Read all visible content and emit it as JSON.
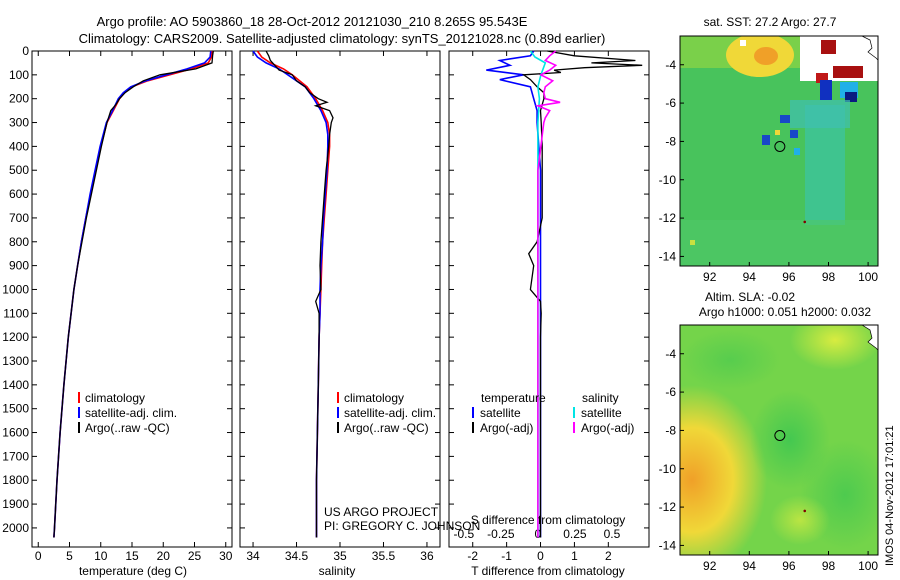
{
  "header": {
    "line1": "Argo profile: AO 5903860_18 28-Oct-2012 20121030_210 8.265S 95.543E",
    "line2": "Climatology: CARS2009. Satellite-adjusted climatology: synTS_20121028.nc (0.89d earlier)"
  },
  "side_label": "IMOS 04-Nov-2012 17:01:21",
  "credits": {
    "line1": "US ARGO PROJECT",
    "line2": "PI: GREGORY C. JOHNSON"
  },
  "colors": {
    "clim": "#ff0000",
    "sat": "#0000ff",
    "argo": "#000000",
    "sal_sat": "#00e5e5",
    "sal_argo": "#ff00ff"
  },
  "chart_data": [
    {
      "id": "temperature",
      "type": "line",
      "xlabel": "temperature (deg C)",
      "ylabel": "",
      "xlim": [
        -1,
        31
      ],
      "ylim": [
        2080,
        0
      ],
      "xticks": [
        0,
        5,
        10,
        15,
        20,
        25,
        30
      ],
      "xtick_labels": [
        "0",
        "5",
        "10",
        "15",
        "20",
        "25",
        "30"
      ],
      "yticks": [
        0,
        100,
        200,
        300,
        400,
        500,
        600,
        700,
        800,
        900,
        1000,
        1100,
        1200,
        1300,
        1400,
        1500,
        1600,
        1700,
        1800,
        1900,
        2000
      ],
      "ytick_labels": [
        "0",
        "100",
        "200",
        "300",
        "400",
        "500",
        "600",
        "700",
        "800",
        "900",
        "1000",
        "1100",
        "1200",
        "1300",
        "1400",
        "1500",
        "1600",
        "1700",
        "1800",
        "1900",
        "2000"
      ],
      "legend": [
        "climatology",
        "satellite-adj. clim.",
        "Argo(..raw -QC)"
      ],
      "legend_position": "lower-center",
      "series": [
        {
          "name": "climatology",
          "color": "#ff0000",
          "depth": [
            0,
            25,
            50,
            75,
            100,
            125,
            150,
            175,
            200,
            250,
            300,
            400,
            500,
            600,
            700,
            800,
            900,
            1000,
            1200,
            1400,
            1600,
            1800,
            2000,
            2040
          ],
          "values": [
            27.8,
            27.7,
            27.2,
            24.5,
            21.0,
            17.5,
            15.0,
            13.8,
            13.0,
            12.0,
            11.0,
            10.0,
            9.2,
            8.4,
            7.6,
            6.9,
            6.3,
            5.7,
            4.8,
            4.1,
            3.5,
            3.0,
            2.6,
            2.5
          ]
        },
        {
          "name": "satellite-adj. clim.",
          "color": "#0000ff",
          "depth": [
            0,
            25,
            50,
            75,
            100,
            125,
            150,
            175,
            200,
            250,
            300,
            400,
            500,
            600,
            700,
            800,
            900,
            1000,
            1200,
            1400,
            1600,
            1800,
            2000,
            2040
          ],
          "values": [
            27.6,
            27.5,
            26.6,
            23.8,
            20.5,
            17.2,
            14.8,
            13.6,
            12.8,
            11.9,
            10.9,
            9.9,
            9.1,
            8.3,
            7.6,
            6.9,
            6.3,
            5.7,
            4.8,
            4.1,
            3.5,
            3.0,
            2.6,
            2.5
          ]
        },
        {
          "name": "Argo(..raw -QC)",
          "color": "#000000",
          "depth": [
            0,
            20,
            50,
            75,
            100,
            125,
            150,
            175,
            200,
            225,
            250,
            300,
            400,
            500,
            600,
            700,
            800,
            900,
            1000,
            1200,
            1400,
            1600,
            1800,
            2000,
            2040
          ],
          "values": [
            28.0,
            27.9,
            27.8,
            25.2,
            19.5,
            16.8,
            15.2,
            13.9,
            13.0,
            12.4,
            11.6,
            11.0,
            10.1,
            9.3,
            8.5,
            7.7,
            7.0,
            6.3,
            5.7,
            4.8,
            4.1,
            3.5,
            3.0,
            2.6,
            2.5
          ]
        }
      ]
    },
    {
      "id": "salinity",
      "type": "line",
      "xlabel": "salinity",
      "xlim": [
        33.85,
        36.15
      ],
      "ylim": [
        2080,
        0
      ],
      "xticks": [
        34,
        34.5,
        35,
        35.5,
        36
      ],
      "xtick_labels": [
        "34",
        "34.5",
        "35",
        "35.5",
        "36"
      ],
      "legend": [
        "climatology",
        "satellite-adj. clim.",
        "Argo(..raw -QC)"
      ],
      "legend_position": "lower-center",
      "series": [
        {
          "name": "climatology",
          "color": "#ff0000",
          "depth": [
            0,
            25,
            50,
            75,
            100,
            150,
            200,
            250,
            300,
            350,
            400,
            500,
            600,
            700,
            800,
            900,
            1000,
            1100,
            1200,
            1400,
            1600,
            1800,
            2000,
            2040
          ],
          "values": [
            34.05,
            34.1,
            34.2,
            34.35,
            34.45,
            34.62,
            34.72,
            34.8,
            34.86,
            34.88,
            34.88,
            34.86,
            34.84,
            34.82,
            34.8,
            34.79,
            34.78,
            34.77,
            34.76,
            34.75,
            34.74,
            34.73,
            34.73,
            34.73
          ]
        },
        {
          "name": "satellite-adj. clim.",
          "color": "#0000ff",
          "depth": [
            0,
            25,
            50,
            75,
            100,
            150,
            200,
            250,
            300,
            350,
            400,
            500,
            600,
            700,
            800,
            900,
            1000,
            1100,
            1200,
            1400,
            1600,
            1800,
            2000,
            2040
          ],
          "values": [
            34.0,
            34.05,
            34.15,
            34.3,
            34.4,
            34.6,
            34.7,
            34.78,
            34.84,
            34.86,
            34.86,
            34.85,
            34.83,
            34.81,
            34.8,
            34.78,
            34.77,
            34.77,
            34.76,
            34.75,
            34.74,
            34.73,
            34.73,
            34.73
          ]
        },
        {
          "name": "Argo(..raw -QC)",
          "color": "#000000",
          "depth": [
            0,
            20,
            40,
            60,
            80,
            100,
            125,
            150,
            175,
            200,
            215,
            230,
            250,
            280,
            300,
            350,
            400,
            500,
            600,
            700,
            800,
            900,
            1000,
            1050,
            1100,
            1200,
            1400,
            1600,
            1800,
            2000,
            2040
          ],
          "values": [
            34.15,
            34.18,
            34.2,
            34.25,
            34.3,
            34.45,
            34.5,
            34.6,
            34.65,
            34.75,
            34.85,
            34.72,
            34.88,
            34.92,
            34.9,
            34.88,
            34.87,
            34.84,
            34.82,
            34.8,
            34.78,
            34.77,
            34.78,
            34.72,
            34.76,
            34.76,
            34.75,
            34.74,
            34.73,
            34.73,
            34.73
          ]
        }
      ]
    },
    {
      "id": "difference",
      "type": "line",
      "xlabel": "T difference from climatology",
      "top_xlabel": "S difference from climatology",
      "t_xlim": [
        -2.7,
        3.2
      ],
      "s_xlim": [
        -0.6,
        0.75
      ],
      "ylim": [
        2080,
        0
      ],
      "t_xticks": [
        -2,
        -1,
        0,
        1,
        2
      ],
      "t_xtick_labels": [
        "-2",
        "-1",
        "0",
        "1",
        "2"
      ],
      "s_xticks": [
        -0.5,
        -0.25,
        0,
        0.25,
        0.5
      ],
      "s_xtick_labels": [
        "-0.5",
        "-0.25",
        "0",
        "0.25",
        "0.5"
      ],
      "legend_titles": [
        "temperature",
        "salinity"
      ],
      "legend": [
        "satellite",
        "Argo(-adj)",
        "satellite",
        "Argo(-adj)"
      ],
      "series": [
        {
          "name": "T satellite",
          "axis": "t",
          "color": "#0000ff",
          "depth": [
            0,
            20,
            40,
            60,
            80,
            100,
            120,
            150,
            200,
            250,
            300,
            400,
            500,
            700,
            1000,
            1500,
            2000,
            2040
          ],
          "values": [
            -0.2,
            -0.3,
            -1.2,
            -0.9,
            -1.6,
            -0.5,
            -1.2,
            -0.3,
            -0.2,
            -0.1,
            -0.1,
            -0.05,
            0,
            0,
            0,
            0,
            0,
            0
          ]
        },
        {
          "name": "T Argo(-adj)",
          "axis": "t",
          "color": "#000000",
          "depth": [
            0,
            20,
            40,
            50,
            60,
            70,
            80,
            90,
            100,
            120,
            150,
            175,
            200,
            250,
            300,
            400,
            500,
            700,
            800,
            850,
            900,
            1000,
            1050,
            1100,
            1200,
            1500,
            2000,
            2040
          ],
          "values": [
            0.2,
            1.0,
            2.8,
            1.5,
            3.0,
            1.3,
            0.4,
            0.6,
            -0.5,
            -0.3,
            -0.1,
            0.1,
            0.1,
            0,
            0.02,
            0.05,
            0.05,
            0.05,
            -0.1,
            -0.35,
            -0.2,
            -0.3,
            0,
            0.02,
            0,
            0,
            0,
            0
          ]
        },
        {
          "name": "S satellite",
          "axis": "s",
          "color": "#00e5e5",
          "depth": [
            0,
            25,
            50,
            100,
            150,
            200,
            300,
            500,
            1000,
            1500,
            2000,
            2040
          ],
          "values": [
            -0.05,
            -0.02,
            0.05,
            0.02,
            0.0,
            0.01,
            0.0,
            0.0,
            0.0,
            0.0,
            0.0,
            0.0
          ]
        },
        {
          "name": "S Argo(-adj)",
          "axis": "s",
          "color": "#ff00ff",
          "depth": [
            0,
            20,
            40,
            60,
            80,
            100,
            125,
            150,
            175,
            200,
            215,
            230,
            250,
            280,
            300,
            350,
            400,
            500,
            1000,
            1500,
            2000,
            2040
          ],
          "values": [
            0.12,
            0.08,
            0.05,
            0.12,
            0.08,
            0.02,
            0.1,
            0.05,
            0.04,
            0.05,
            0.15,
            0.0,
            0.08,
            0.05,
            0.04,
            0.03,
            0.02,
            0.0,
            0.0,
            0.0,
            0.0,
            0.0
          ]
        }
      ]
    },
    {
      "id": "sst_map",
      "type": "heatmap",
      "title": "sat. SST: 27.2  Argo: 27.7",
      "xlim": [
        90.5,
        100.5
      ],
      "ylim": [
        -14.5,
        -2.5
      ],
      "xticks": [
        92,
        94,
        96,
        98,
        100
      ],
      "xtick_labels": [
        "92",
        "94",
        "96",
        "98",
        "100"
      ],
      "yticks": [
        -4,
        -6,
        -8,
        -10,
        -12,
        -14
      ],
      "ytick_labels": [
        "-4",
        "-6",
        "-8",
        "-10",
        "-12",
        "-14"
      ],
      "argo_position": {
        "lon": 95.543,
        "lat": -8.265
      },
      "secondary_marker": {
        "lon": 96.8,
        "lat": -12.2
      }
    },
    {
      "id": "sla_map",
      "type": "heatmap",
      "title_line1": "Altim. SLA: -0.02",
      "title_line2": "Argo h1000: 0.051 h2000: 0.032",
      "xlim": [
        90.5,
        100.5
      ],
      "ylim": [
        -14.5,
        -2.5
      ],
      "xticks": [
        92,
        94,
        96,
        98,
        100
      ],
      "xtick_labels": [
        "92",
        "94",
        "96",
        "98",
        "100"
      ],
      "yticks": [
        -4,
        -6,
        -8,
        -10,
        -12,
        -14
      ],
      "ytick_labels": [
        "-4",
        "-6",
        "-8",
        "-10",
        "-12",
        "-14"
      ],
      "argo_position": {
        "lon": 95.543,
        "lat": -8.265
      },
      "secondary_marker": {
        "lon": 96.8,
        "lat": -12.2
      }
    }
  ]
}
